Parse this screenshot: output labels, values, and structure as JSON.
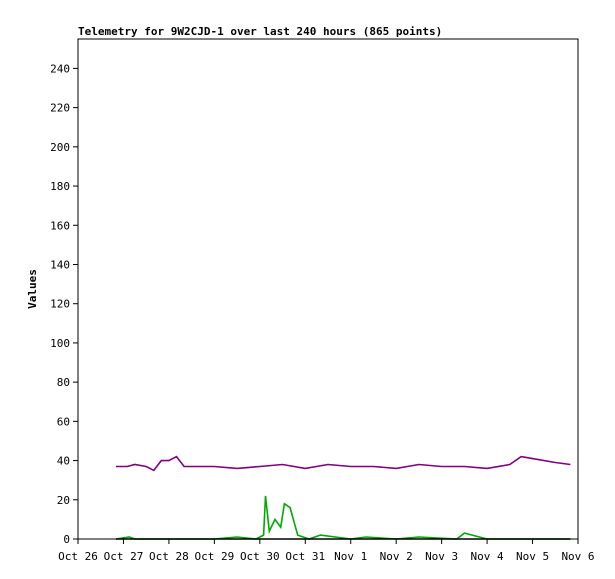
{
  "chart_data": {
    "type": "line",
    "title": "Telemetry for 9W2CJD-1 over last 240 hours (865 points)",
    "ylabel": "Values",
    "xlabel": "",
    "ylim": [
      0,
      255
    ],
    "xlim": [
      "Oct 26",
      "Nov 6"
    ],
    "grid": false,
    "legend": "none",
    "y_ticks": [
      0,
      20,
      40,
      60,
      80,
      100,
      120,
      140,
      160,
      180,
      200,
      220,
      240
    ],
    "x_ticks": [
      "Oct 26",
      "Oct 27",
      "Oct 28",
      "Oct 29",
      "Oct 30",
      "Oct 31",
      "Nov 1",
      "Nov 2",
      "Nov 3",
      "Nov 4",
      "Nov 5",
      "Nov 6"
    ],
    "series": [
      {
        "color": "#800080",
        "x": [
          "Oct 26 20:00",
          "Oct 27 02:00",
          "Oct 27 06:00",
          "Oct 27 12:00",
          "Oct 27 16:00",
          "Oct 27 20:00",
          "Oct 28 00:00",
          "Oct 28 04:00",
          "Oct 28 08:00",
          "Oct 28 16:00",
          "Oct 29 00:00",
          "Oct 29 12:00",
          "Oct 30 00:00",
          "Oct 30 12:00",
          "Oct 31 00:00",
          "Oct 31 12:00",
          "Nov 1 00:00",
          "Nov 1 12:00",
          "Nov 2 00:00",
          "Nov 2 12:00",
          "Nov 3 00:00",
          "Nov 3 12:00",
          "Nov 4 00:00",
          "Nov 4 12:00",
          "Nov 4 18:00",
          "Nov 5 00:00",
          "Nov 5 12:00",
          "Nov 5 20:00"
        ],
        "y": [
          37,
          37,
          38,
          37,
          35,
          40,
          40,
          42,
          37,
          37,
          37,
          36,
          37,
          38,
          36,
          38,
          37,
          37,
          36,
          38,
          37,
          37,
          36,
          38,
          42,
          41,
          39,
          38
        ]
      },
      {
        "color": "#00aa00",
        "x": [
          "Oct 26 20:00",
          "Oct 27 03:00",
          "Oct 27 06:00",
          "Oct 28 00:00",
          "Oct 29 00:00",
          "Oct 29 12:00",
          "Oct 29 22:00",
          "Oct 30 02:00",
          "Oct 30 03:00",
          "Oct 30 05:00",
          "Oct 30 08:00",
          "Oct 30 11:00",
          "Oct 30 13:00",
          "Oct 30 16:00",
          "Oct 30 20:00",
          "Oct 31 02:00",
          "Oct 31 08:00",
          "Nov 1 00:00",
          "Nov 1 08:00",
          "Nov 2 00:00",
          "Nov 2 12:00",
          "Nov 3 08:00",
          "Nov 3 12:00",
          "Nov 4 00:00",
          "Nov 5 00:00",
          "Nov 5 20:00"
        ],
        "y": [
          0,
          1,
          0,
          0,
          0,
          1,
          0,
          2,
          22,
          4,
          10,
          6,
          18,
          16,
          2,
          0,
          2,
          0,
          1,
          0,
          1,
          0,
          3,
          0,
          0,
          0
        ]
      },
      {
        "color": "#000000",
        "x": [
          "Oct 26 20:00",
          "Nov 5 20:00"
        ],
        "y": [
          0,
          0
        ]
      }
    ]
  }
}
